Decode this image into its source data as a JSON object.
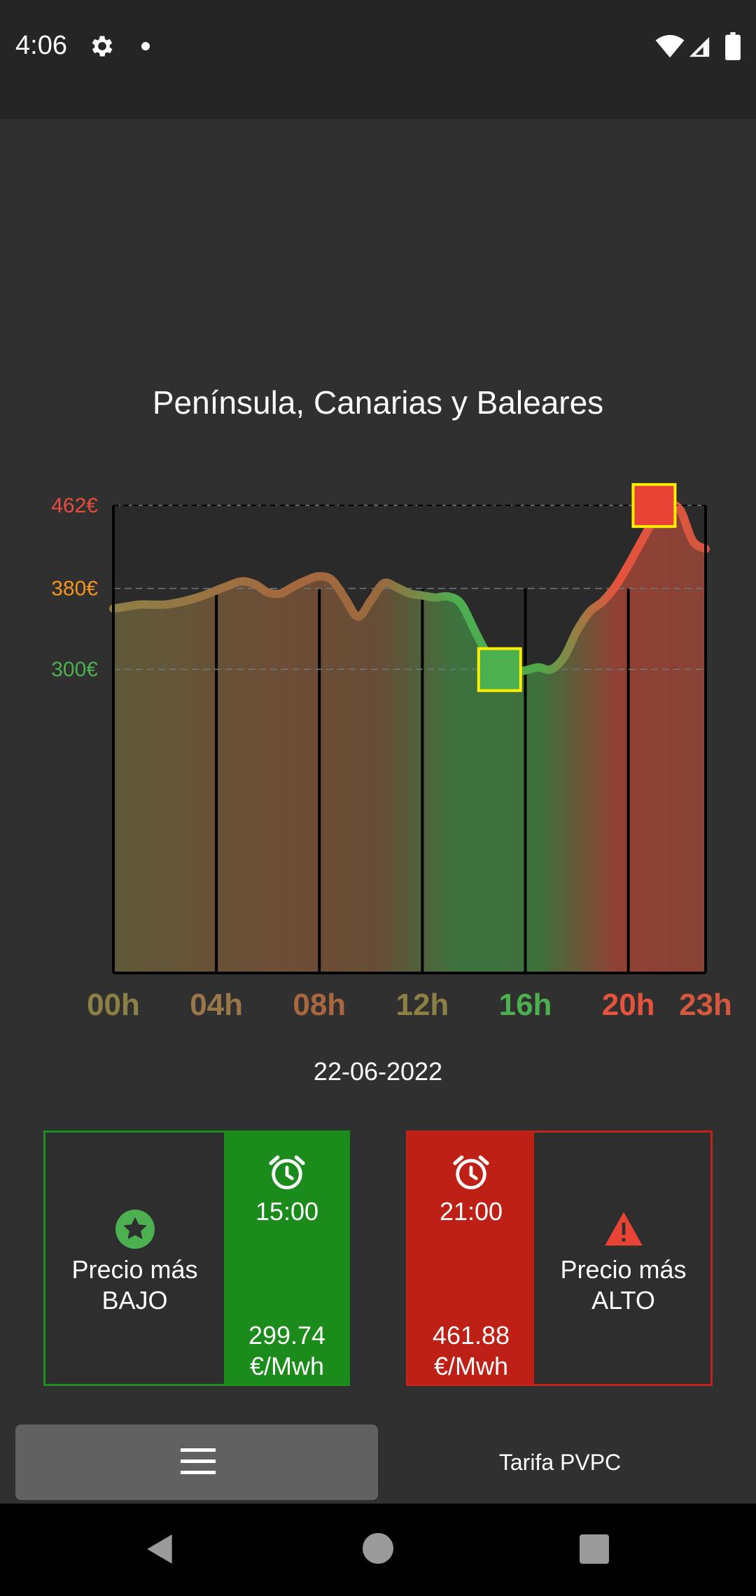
{
  "status_bar": {
    "time": "4:06"
  },
  "chart_data": {
    "type": "area",
    "title": "Península, Canarias y Baleares",
    "date": "22-06-2022",
    "x": [
      0,
      0.5,
      1,
      1.5,
      2,
      2.5,
      3,
      3.5,
      4,
      4.5,
      5,
      5.5,
      6,
      6.5,
      7,
      7.5,
      8,
      8.5,
      9,
      9.5,
      10,
      10.5,
      11,
      11.5,
      12,
      12.5,
      13,
      13.5,
      14,
      14.5,
      15,
      15.5,
      16,
      16.5,
      17,
      17.5,
      18,
      18.5,
      19,
      19.5,
      20,
      20.5,
      21,
      21.5,
      22,
      22.5,
      23
    ],
    "values": [
      360,
      362,
      364,
      364,
      364,
      366,
      369,
      373,
      378,
      383,
      387,
      384,
      376,
      375,
      382,
      388,
      392,
      388,
      370,
      352,
      368,
      385,
      381,
      375,
      373,
      371,
      372,
      365,
      340,
      316,
      300,
      298,
      299,
      302,
      300,
      312,
      338,
      357,
      367,
      382,
      403,
      426,
      448,
      462,
      458,
      427,
      419
    ],
    "yticks": [
      {
        "value": 300,
        "label": "300€",
        "color": "#4caf50"
      },
      {
        "value": 380,
        "label": "380€",
        "color": "#f7931e"
      },
      {
        "value": 462,
        "label": "462€",
        "color": "#e84c3d"
      }
    ],
    "xticks": [
      {
        "value": 0,
        "label": "00h",
        "color": "#8c8045"
      },
      {
        "value": 4,
        "label": "04h",
        "color": "#9a7748"
      },
      {
        "value": 8,
        "label": "08h",
        "color": "#a8673f"
      },
      {
        "value": 12,
        "label": "12h",
        "color": "#8c8045"
      },
      {
        "value": 16,
        "label": "16h",
        "color": "#4caf50"
      },
      {
        "value": 20,
        "label": "20h",
        "color": "#e5533d"
      },
      {
        "value": 23,
        "label": "23h",
        "color": "#d4583e"
      }
    ],
    "xlim": [
      0,
      23
    ],
    "ylim": [
      0,
      462
    ],
    "min_marker": {
      "x": 15,
      "value": 299.74
    },
    "max_marker": {
      "x": 21,
      "value": 461.88
    }
  },
  "low_price": {
    "label_line1": "Precio más",
    "label_line2": "BAJO",
    "time": "15:00",
    "price": "299.74",
    "unit": "€/Mwh",
    "color": "#1b8c1b"
  },
  "high_price": {
    "label_line1": "Precio más",
    "label_line2": "ALTO",
    "time": "21:00",
    "price": "461.88",
    "unit": "€/Mwh",
    "color": "#be2016"
  },
  "bottom_bar": {
    "menu_icon": "hamburger-menu-icon",
    "tariff_label": "Tarifa PVPC"
  }
}
